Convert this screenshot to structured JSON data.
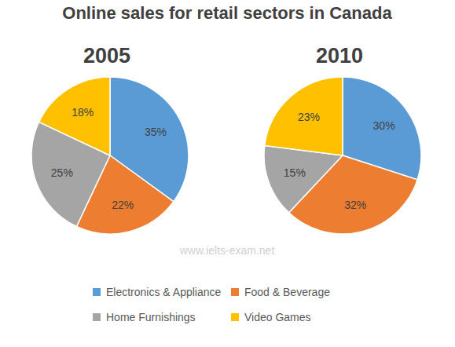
{
  "title": "Online sales for retail sectors in Canada",
  "watermark": "www.ielts-exam.net",
  "chart_data": [
    {
      "type": "pie",
      "title": "2005",
      "categories": [
        "Electronics & Appliance",
        "Food & Beverage",
        "Home Furnishings",
        "Video Games"
      ],
      "values": [
        35,
        22,
        25,
        18
      ],
      "value_labels": [
        "35%",
        "22%",
        "25%",
        "18%"
      ],
      "colors": [
        "#5b9bd5",
        "#ed7d31",
        "#a5a5a5",
        "#ffc000"
      ],
      "data_labels": true,
      "legend": "bottom"
    },
    {
      "type": "pie",
      "title": "2010",
      "categories": [
        "Electronics & Appliance",
        "Food & Beverage",
        "Home Furnishings",
        "Video Games"
      ],
      "values": [
        30,
        32,
        15,
        23
      ],
      "value_labels": [
        "30%",
        "32%",
        "15%",
        "23%"
      ],
      "colors": [
        "#5b9bd5",
        "#ed7d31",
        "#a5a5a5",
        "#ffc000"
      ],
      "data_labels": true,
      "legend": "bottom"
    }
  ]
}
